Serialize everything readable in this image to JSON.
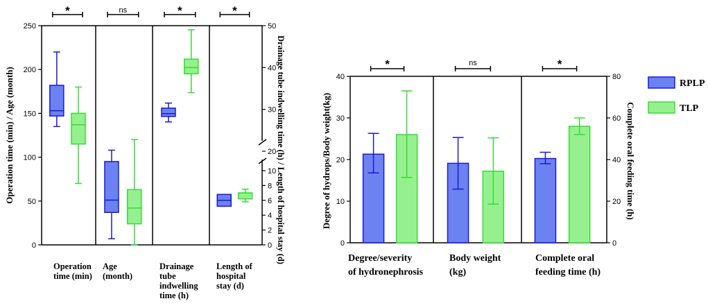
{
  "colors": {
    "rplp_stroke": "#1a1ad6",
    "rplp_fill": "#6b82f0",
    "tlp_stroke": "#33dd33",
    "tlp_fill": "#97f08f"
  },
  "legend": [
    {
      "name": "RPLP",
      "color_key": "rplp"
    },
    {
      "name": "TLP",
      "color_key": "tlp"
    }
  ],
  "chart_data": [
    {
      "type": "box",
      "ylabel_left": "Operation time (min) / Age (month)",
      "ylabel_right": "Drainage tube indwelling time (h) / Length of hospital stay (d)",
      "left_axis": {
        "min": 0,
        "max": 250,
        "ticks": [
          "0",
          "50",
          "100",
          "150",
          "200",
          "250"
        ]
      },
      "right_axis": {
        "upper_ticks": [
          "20",
          "30",
          "40",
          "50"
        ],
        "lower_ticks": [
          "0",
          "2",
          "4",
          "6",
          "8",
          "10"
        ]
      },
      "panels": [
        {
          "label_lines": [
            "Operation",
            "time (min)"
          ],
          "significance": "*",
          "axis": "left",
          "boxes": [
            {
              "series": "RPLP",
              "min": 135,
              "q1": 147,
              "median": 153,
              "q3": 182,
              "max": 220
            },
            {
              "series": "TLP",
              "min": 70,
              "q1": 115,
              "median": 137,
              "q3": 150,
              "max": 180
            }
          ]
        },
        {
          "label_lines": [
            "Age",
            "(month)"
          ],
          "significance": "ns",
          "axis": "left",
          "boxes": [
            {
              "series": "RPLP",
              "min": 7,
              "q1": 37,
              "median": 51,
              "q3": 95,
              "max": 108
            },
            {
              "series": "TLP",
              "min": 0,
              "q1": 24,
              "median": 42,
              "q3": 63,
              "max": 120
            }
          ]
        },
        {
          "label_lines": [
            "Drainage",
            "tube",
            "indwelling",
            "time (h)"
          ],
          "significance": "*",
          "axis": "right_upper",
          "boxes": [
            {
              "series": "RPLP",
              "min": 27,
              "q1": 28.3,
              "median": 29,
              "q3": 30.3,
              "max": 31.5
            },
            {
              "series": "TLP",
              "min": 34,
              "q1": 38.5,
              "median": 40,
              "q3": 42,
              "max": 49
            }
          ]
        },
        {
          "label_lines": [
            "Length of",
            "hospital",
            "stay (d)"
          ],
          "significance": "*",
          "axis": "right_lower",
          "boxes": [
            {
              "series": "RPLP",
              "min": 5.2,
              "q1": 5.2,
              "median": 6,
              "q3": 6.8,
              "max": 6.8
            },
            {
              "series": "TLP",
              "min": 5.8,
              "q1": 6.2,
              "median": 7,
              "q3": 7,
              "max": 7.5
            }
          ]
        }
      ]
    },
    {
      "type": "bar",
      "ylabel_left": "Degree of hydrops/Body weight(kg)",
      "ylabel_right": "Complete oral feeding time (h)",
      "left_axis": {
        "min": 0,
        "max": 40,
        "ticks": [
          "0",
          "10",
          "20",
          "30",
          "40"
        ]
      },
      "right_axis": {
        "min": 0,
        "max": 80,
        "ticks": [
          "0",
          "20",
          "40",
          "60",
          "80"
        ]
      },
      "panels": [
        {
          "label_lines": [
            "Degree/severity",
            "of hydronephrosis"
          ],
          "significance": "*",
          "axis": "left",
          "bars": [
            {
              "series": "RPLP",
              "value": 21.3,
              "err_low": 16.8,
              "err_high": 26.3
            },
            {
              "series": "TLP",
              "value": 26,
              "err_low": 15.7,
              "err_high": 36.5
            }
          ]
        },
        {
          "label_lines": [
            "Body weight",
            "(kg)"
          ],
          "significance": "ns",
          "axis": "left",
          "bars": [
            {
              "series": "RPLP",
              "value": 19.1,
              "err_low": 12.9,
              "err_high": 25.3
            },
            {
              "series": "TLP",
              "value": 17.2,
              "err_low": 9.3,
              "err_high": 25.2
            }
          ]
        },
        {
          "label_lines": [
            "Complete oral",
            "feeding time (h)"
          ],
          "significance": "*",
          "axis": "right",
          "bars": [
            {
              "series": "RPLP",
              "value": 40.5,
              "err_low": 38,
              "err_high": 43.5
            },
            {
              "series": "TLP",
              "value": 56,
              "err_low": 52,
              "err_high": 60
            }
          ]
        }
      ]
    }
  ]
}
